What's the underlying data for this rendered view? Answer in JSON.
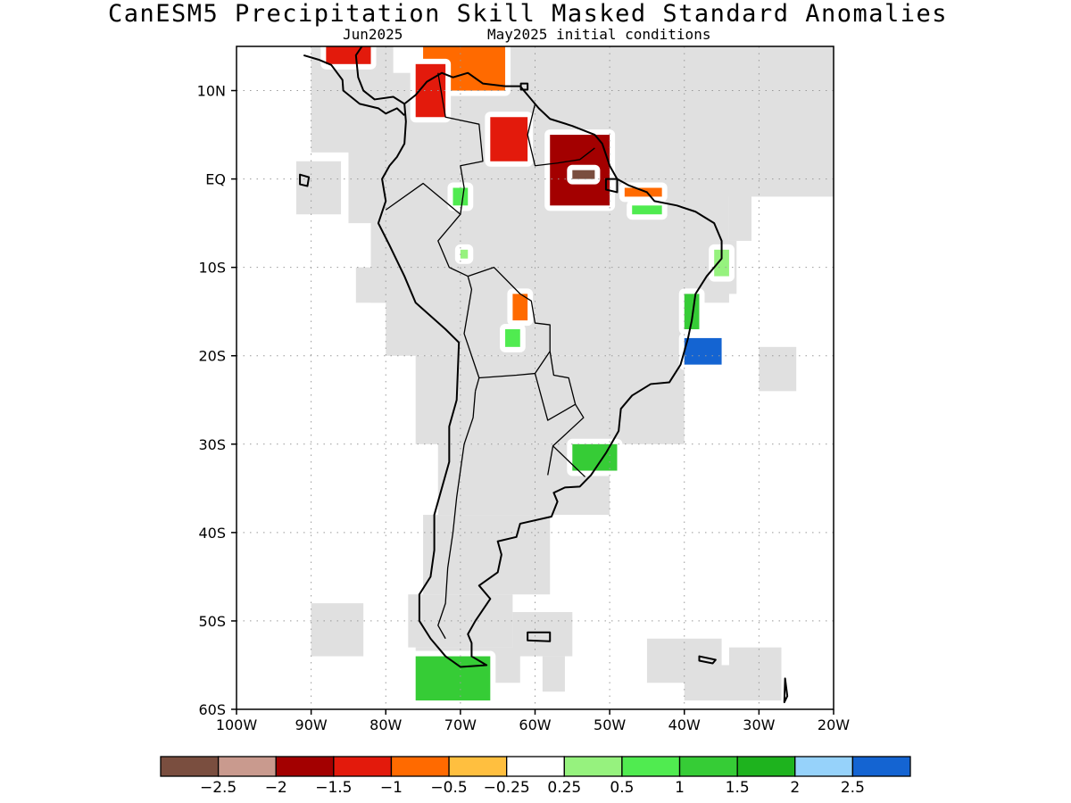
{
  "title": "CanESM5 Precipitation Skill Masked Standard Anomalies",
  "subtitle_left": "Jun2025",
  "subtitle_right": "May2025 initial conditions",
  "map": {
    "lon_range": [
      -100,
      -20
    ],
    "lat_range": [
      -60,
      15
    ],
    "lon_ticks": [
      {
        "value": -100,
        "label": "100W"
      },
      {
        "value": -90,
        "label": "90W"
      },
      {
        "value": -80,
        "label": "80W"
      },
      {
        "value": -70,
        "label": "70W"
      },
      {
        "value": -60,
        "label": "60W"
      },
      {
        "value": -50,
        "label": "50W"
      },
      {
        "value": -40,
        "label": "40W"
      },
      {
        "value": -30,
        "label": "30W"
      },
      {
        "value": -20,
        "label": "20W"
      }
    ],
    "lat_ticks": [
      {
        "value": 10,
        "label": "10N"
      },
      {
        "value": 0,
        "label": "EQ"
      },
      {
        "value": -10,
        "label": "10S"
      },
      {
        "value": -20,
        "label": "20S"
      },
      {
        "value": -30,
        "label": "30S"
      },
      {
        "value": -40,
        "label": "40S"
      },
      {
        "value": -50,
        "label": "50S"
      },
      {
        "value": -60,
        "label": "60S"
      }
    ],
    "grid": "dotted",
    "mask_color": "#e0e0e0",
    "anomaly_patches": [
      {
        "region": "Colombia/Venezuela Caribbean coast",
        "lon": [
          -75,
          -64
        ],
        "lat": [
          10,
          15
        ],
        "class": "-0.5"
      },
      {
        "region": "Panama/Colombia",
        "lon": [
          -76,
          -72
        ],
        "lat": [
          7,
          13
        ],
        "class": "-1"
      },
      {
        "region": "Central America Pacific",
        "lon": [
          -88,
          -82
        ],
        "lat": [
          13,
          15
        ],
        "class": "-1"
      },
      {
        "region": "Venezuela Llanos",
        "lon": [
          -66,
          -61
        ],
        "lat": [
          2,
          7
        ],
        "class": "-1"
      },
      {
        "region": "Guianas",
        "lon": [
          -58,
          -50
        ],
        "lat": [
          -3,
          5
        ],
        "class": "-1.5"
      },
      {
        "region": "Amapa core",
        "lon": [
          -55,
          -52
        ],
        "lat": [
          0,
          1
        ],
        "class": "-2.5"
      },
      {
        "region": "Para coast",
        "lon": [
          -48,
          -43
        ],
        "lat": [
          -2,
          -1
        ],
        "class": "-0.5"
      },
      {
        "region": "Maranhao",
        "lon": [
          -47,
          -43
        ],
        "lat": [
          -4,
          -3
        ],
        "class": "1"
      },
      {
        "region": "Northwest Amazon",
        "lon": [
          -71,
          -69
        ],
        "lat": [
          -3,
          -1
        ],
        "class": "1"
      },
      {
        "region": "Peru Amazon",
        "lon": [
          -70,
          -69
        ],
        "lat": [
          -9,
          -8
        ],
        "class": "0.5"
      },
      {
        "region": "Bolivia north",
        "lon": [
          -63,
          -61
        ],
        "lat": [
          -16,
          -13
        ],
        "class": "-0.5"
      },
      {
        "region": "Bolivia",
        "lon": [
          -64,
          -62
        ],
        "lat": [
          -19,
          -17
        ],
        "class": "1"
      },
      {
        "region": "Pernambuco",
        "lon": [
          -36,
          -34
        ],
        "lat": [
          -11,
          -8
        ],
        "class": "0.5"
      },
      {
        "region": "Bahia coast",
        "lon": [
          -40,
          -38
        ],
        "lat": [
          -17,
          -13
        ],
        "class": "1.5"
      },
      {
        "region": "Espirito Santo offshore",
        "lon": [
          -40,
          -35
        ],
        "lat": [
          -21,
          -18
        ],
        "class": "2.5"
      },
      {
        "region": "Rio Grande do Sul",
        "lon": [
          -55,
          -49
        ],
        "lat": [
          -33,
          -30
        ],
        "class": "1.5"
      },
      {
        "region": "Tierra del Fuego",
        "lon": [
          -76,
          -66
        ],
        "lat": [
          -59,
          -54
        ],
        "class": "1.5"
      }
    ]
  },
  "colorbar": {
    "colors": [
      "#7a4e3f",
      "#c99a8e",
      "#a30000",
      "#e31a0c",
      "#ff6a00",
      "#ffbf3f",
      "#ffffff",
      "#96f27e",
      "#50eb50",
      "#36cc36",
      "#1eb31e",
      "#96d2fa",
      "#1464d2"
    ],
    "labels": [
      "-2.5",
      "-2",
      "-1.5",
      "-1",
      "-0.5",
      "-0.25",
      "0.25",
      "0.5",
      "1",
      "1.5",
      "2",
      "2.5"
    ]
  }
}
